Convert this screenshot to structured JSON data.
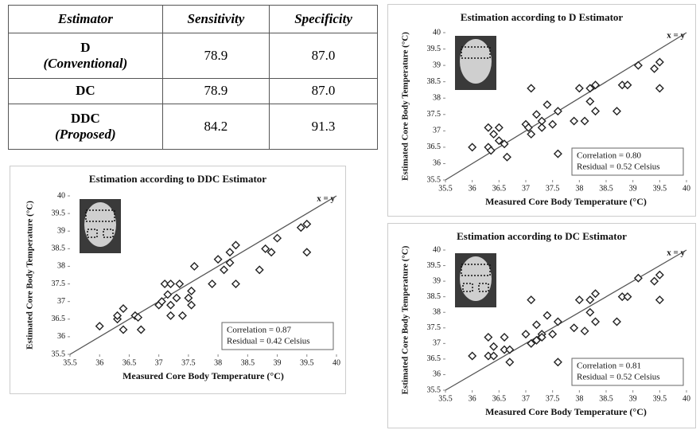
{
  "table": {
    "header": [
      "Estimator",
      "Sensitivity",
      "Specificity"
    ],
    "rows": [
      [
        [
          "D",
          "(Conventional)"
        ],
        "78.9",
        "87.0"
      ],
      [
        [
          "DC"
        ],
        "78.9",
        "87.0"
      ],
      [
        [
          "DDC",
          "(Proposed)"
        ],
        "84.2",
        "91.3"
      ]
    ]
  },
  "chart_data": [
    {
      "type": "scatter",
      "title": "Estimation according to DDC Estimator",
      "x_label": "Measured Core Body Temperature (°C)",
      "y_label": "Estimated Core Body Temperature (°C)",
      "annotation": "x = y",
      "stats": [
        "Correlation = 0.87",
        "Residual = 0.42 Celsius"
      ],
      "color": "#222222",
      "x": [
        36,
        36.3,
        36.3,
        36.4,
        36.4,
        36.6,
        36.65,
        36.7,
        37,
        37.05,
        37.1,
        37.15,
        37.2,
        37.2,
        37.3,
        37.2,
        37.35,
        37.4,
        37.5,
        37.55,
        37.55,
        37.6,
        37.9,
        38,
        38.1,
        38.2,
        38.2,
        38.3,
        38.3,
        38.7,
        38.8,
        38.9,
        39,
        39.4,
        39.5,
        39.5
      ],
      "y": [
        36.3,
        36.5,
        36.6,
        36.8,
        36.2,
        36.6,
        36.55,
        36.2,
        36.9,
        37.0,
        37.5,
        37.2,
        37.5,
        36.9,
        37.1,
        36.6,
        37.5,
        36.6,
        37.1,
        37.3,
        36.9,
        38.0,
        37.5,
        38.2,
        37.9,
        38.1,
        38.4,
        38.6,
        37.5,
        37.9,
        38.5,
        38.4,
        38.8,
        39.1,
        39.2,
        38.4
      ],
      "xlim": [
        35.5,
        40
      ],
      "ylim": [
        35.5,
        40
      ],
      "xticks": [
        35.5,
        36,
        36.5,
        37,
        37.5,
        38,
        38.5,
        39,
        39.5,
        40
      ],
      "yticks": [
        35.5,
        36,
        36.5,
        37,
        37.5,
        38,
        38.5,
        39,
        39.5,
        40
      ]
    },
    {
      "type": "scatter",
      "title": "Estimation according to D Estimator",
      "x_label": "Measured Core Body Temperature (°C)",
      "y_label": "Estimated Core Body Temperature (°C)",
      "annotation": "x = y",
      "stats": [
        "Correlation = 0.80",
        "Residual = 0.52 Celsius"
      ],
      "color": "#222222",
      "x": [
        36,
        36.3,
        36.3,
        36.35,
        36.4,
        36.5,
        36.5,
        36.6,
        36.65,
        37,
        37.05,
        37.1,
        37.1,
        37.2,
        37.3,
        37.3,
        37.4,
        37.5,
        37.6,
        37.6,
        37.9,
        38,
        38.1,
        38.2,
        38.2,
        38.3,
        38.3,
        38.7,
        38.8,
        38.9,
        39.1,
        39.4,
        39.5,
        39.5
      ],
      "y": [
        36.5,
        36.5,
        37.1,
        36.4,
        36.9,
        37.1,
        36.7,
        36.6,
        36.2,
        37.2,
        37.1,
        38.3,
        36.9,
        37.5,
        37.3,
        37.1,
        37.8,
        37.2,
        37.6,
        36.3,
        37.3,
        38.3,
        37.3,
        37.9,
        38.3,
        38.4,
        37.6,
        37.6,
        38.4,
        38.4,
        39.0,
        38.9,
        39.1,
        38.3
      ],
      "xlim": [
        35.5,
        40
      ],
      "ylim": [
        35.5,
        40
      ],
      "xticks": [
        35.5,
        36,
        36.5,
        37,
        37.5,
        38,
        38.5,
        39,
        39.5,
        40
      ],
      "yticks": [
        35.5,
        36,
        36.5,
        37,
        37.5,
        38,
        38.5,
        39,
        39.5,
        40
      ]
    },
    {
      "type": "scatter",
      "title": "Estimation according to DC Estimator",
      "x_label": "Measured Core Body Temperature (°C)",
      "y_label": "Estimated Core Body Temperature (°C)",
      "annotation": "x = y",
      "stats": [
        "Correlation = 0.81",
        "Residual = 0.52 Celsius"
      ],
      "color": "#222222",
      "x": [
        36,
        36.3,
        36.3,
        36.4,
        36.4,
        36.6,
        36.6,
        36.7,
        36.7,
        37,
        37.1,
        37.1,
        37.2,
        37.2,
        37.3,
        37.3,
        37.4,
        37.5,
        37.6,
        37.6,
        37.9,
        38,
        38.1,
        38.2,
        38.2,
        38.3,
        38.3,
        38.7,
        38.8,
        38.9,
        39.1,
        39.4,
        39.5,
        39.5
      ],
      "y": [
        36.6,
        36.6,
        37.2,
        36.9,
        36.6,
        37.2,
        36.8,
        36.4,
        36.8,
        37.3,
        38.4,
        37.0,
        37.6,
        37.1,
        37.3,
        37.2,
        37.9,
        37.3,
        37.7,
        36.4,
        37.5,
        38.4,
        37.4,
        38.0,
        38.4,
        38.6,
        37.7,
        37.7,
        38.5,
        38.5,
        39.1,
        39.0,
        39.2,
        38.4
      ],
      "xlim": [
        35.5,
        40
      ],
      "ylim": [
        35.5,
        40
      ],
      "xticks": [
        35.5,
        36,
        36.5,
        37,
        37.5,
        38,
        38.5,
        39,
        39.5,
        40
      ],
      "yticks": [
        35.5,
        36,
        36.5,
        37,
        37.5,
        38,
        38.5,
        39,
        39.5,
        40
      ]
    }
  ]
}
